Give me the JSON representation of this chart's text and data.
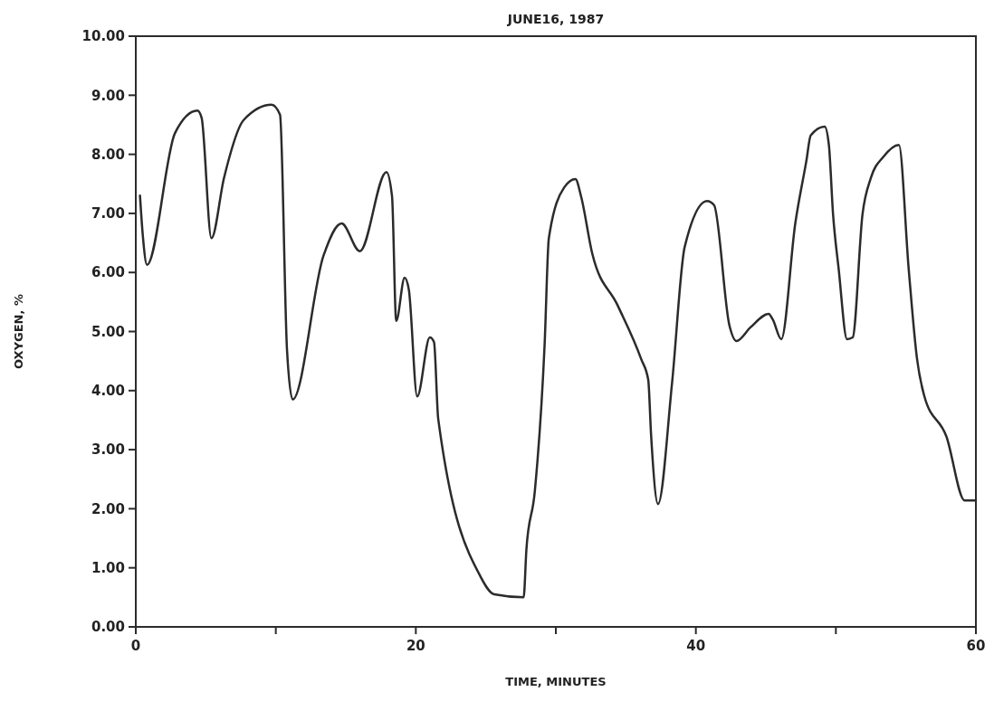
{
  "chart_data": {
    "type": "line",
    "title": "JUNE16, 1987",
    "xlabel": "TIME, MINUTES",
    "ylabel": "OXYGEN, %",
    "xlim": [
      0,
      60
    ],
    "xticks": [
      0,
      {
        "value": 10,
        "label": null
      },
      20,
      {
        "value": 30,
        "label": null
      },
      40,
      {
        "value": 50,
        "label": null
      },
      60
    ],
    "ylim": [
      0,
      10
    ],
    "yticks": [
      {
        "value": 0,
        "label": "0.00"
      },
      {
        "value": 1,
        "label": "1.00"
      },
      {
        "value": 2,
        "label": "2.00"
      },
      {
        "value": 3,
        "label": "3.00"
      },
      {
        "value": 4,
        "label": "4.00"
      },
      {
        "value": 5,
        "label": "5.00"
      },
      {
        "value": 6,
        "label": "6.00"
      },
      {
        "value": 7,
        "label": "7.00"
      },
      {
        "value": 8,
        "label": "8.00"
      },
      {
        "value": 9,
        "label": "9.00"
      },
      {
        "value": 10,
        "label": "10.00"
      }
    ],
    "grid": false,
    "marker": "none",
    "line_style": "solid",
    "series": [
      {
        "color": "#2b2b2b",
        "x": [
          0.3,
          0.5,
          0.8,
          2.8,
          4.4,
          4.7,
          5.4,
          6.3,
          7.7,
          9.7,
          10.3,
          10.8,
          11.2,
          13.4,
          14.7,
          16.0,
          17.9,
          18.3,
          18.6,
          19.2,
          19.5,
          20.1,
          21.0,
          21.3,
          21.6,
          24.6,
          25.6,
          27.7,
          27.9,
          28.5,
          29.2,
          29.5,
          30.6,
          31.4,
          31.8,
          32.6,
          34.4,
          36.1,
          36.6,
          36.8,
          37.3,
          38.3,
          39.2,
          40.8,
          41.3,
          42.4,
          42.9,
          43.9,
          45.2,
          45.5,
          46.1,
          47.1,
          47.9,
          48.2,
          49.2,
          49.5,
          49.8,
          50.2,
          50.8,
          51.2,
          51.9,
          52.5,
          53.4,
          54.5,
          55.2,
          55.8,
          56.3,
          57.9,
          59.2,
          60
        ],
        "values": [
          7.3,
          6.63,
          6.13,
          8.36,
          8.74,
          8.62,
          6.58,
          7.6,
          8.58,
          8.84,
          8.67,
          4.69,
          3.85,
          6.28,
          6.83,
          6.36,
          7.7,
          7.29,
          5.18,
          5.91,
          5.71,
          3.9,
          4.9,
          4.82,
          3.52,
          0.86,
          0.55,
          0.5,
          1.32,
          2.3,
          4.79,
          6.58,
          7.44,
          7.58,
          7.29,
          6.32,
          5.45,
          4.53,
          4.18,
          3.26,
          2.08,
          4.13,
          6.43,
          7.21,
          7.14,
          5.1,
          4.84,
          5.07,
          5.3,
          5.2,
          4.87,
          6.83,
          7.9,
          8.32,
          8.47,
          8.16,
          6.98,
          6.06,
          4.87,
          4.9,
          6.98,
          7.6,
          7.96,
          8.16,
          6.06,
          4.53,
          3.92,
          3.22,
          2.14,
          2.14
        ]
      }
    ]
  }
}
